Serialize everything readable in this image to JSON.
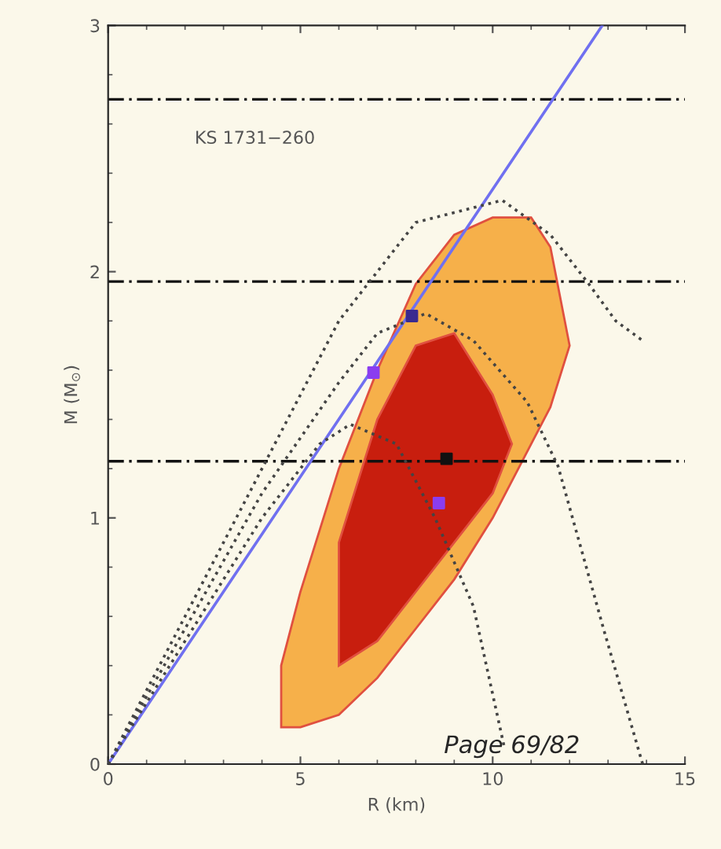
{
  "chart_data": {
    "type": "line",
    "xlabel": "R (km)",
    "ylabel": "M (M$_{⊙}$)",
    "xlim": [
      0,
      15
    ],
    "ylim": [
      0,
      3
    ],
    "xticks": [
      0,
      5,
      10,
      15
    ],
    "yticks": [
      0,
      1,
      2,
      3
    ],
    "grid": false,
    "legend": false,
    "series": [
      {
        "type": "area",
        "color": "#f6b04a",
        "x": [
          4.5,
          5,
          6,
          7,
          8,
          9,
          10,
          11,
          11.5,
          12,
          11.5,
          11,
          10,
          9,
          8,
          7,
          6,
          5,
          4.5
        ],
        "values": [
          0.4,
          0.7,
          1.2,
          1.6,
          1.95,
          2.15,
          2.22,
          2.22,
          2.1,
          1.7,
          1.45,
          1.3,
          1.0,
          0.75,
          0.55,
          0.35,
          0.2,
          0.15,
          0.15
        ]
      },
      {
        "type": "area",
        "color": "#c81e0e",
        "x": [
          6,
          7,
          8,
          9,
          10,
          10.5,
          10,
          9,
          8,
          7,
          6
        ],
        "values": [
          0.9,
          1.4,
          1.7,
          1.75,
          1.5,
          1.3,
          1.1,
          0.9,
          0.7,
          0.5,
          0.4
        ]
      },
      {
        "color": "#7070f0",
        "line_style": "solid",
        "x": [
          0,
          12.85
        ],
        "values": [
          0,
          3
        ]
      },
      {
        "color": "#444444",
        "line_style": "dotted",
        "x": [
          0,
          2,
          4,
          6,
          8,
          10.25,
          11.5,
          12.5,
          13.2,
          13.9
        ],
        "values": [
          0,
          0.6,
          1.2,
          1.8,
          2.2,
          2.29,
          2.15,
          1.95,
          1.8,
          1.72
        ]
      },
      {
        "color": "#444444",
        "line_style": "dotted",
        "x": [
          0,
          2,
          4,
          6,
          7,
          8.26,
          9.5,
          10.9,
          11.7,
          12.9,
          13.9
        ],
        "values": [
          0,
          0.55,
          1.1,
          1.55,
          1.75,
          1.83,
          1.72,
          1.47,
          1.21,
          0.54,
          0
        ]
      },
      {
        "color": "#444444",
        "line_style": "dotted",
        "x": [
          0,
          2,
          4,
          5.5,
          6.3,
          7.5,
          8.5,
          9.5,
          10.3
        ],
        "values": [
          0,
          0.5,
          1.0,
          1.3,
          1.38,
          1.3,
          1.0,
          0.64,
          0.07
        ]
      },
      {
        "type": "scatter",
        "marker": "square",
        "colors": [
          "#8a3df0",
          "#3a2a90",
          "#111111",
          "#8a3df0"
        ],
        "x": [
          6.9,
          7.9,
          8.8,
          8.6
        ],
        "values": [
          1.59,
          1.82,
          1.24,
          1.06
        ]
      }
    ],
    "ref_lines": [
      {
        "axis": "y",
        "value": 2.7,
        "color": "#111111",
        "line_style": "dashed"
      },
      {
        "axis": "y",
        "value": 1.96,
        "color": "#111111",
        "line_style": "dashed"
      },
      {
        "axis": "y",
        "value": 1.23,
        "color": "#111111",
        "line_style": "dashed"
      }
    ],
    "annotations": [
      "KS 1731−260",
      "Page 69/82"
    ]
  }
}
